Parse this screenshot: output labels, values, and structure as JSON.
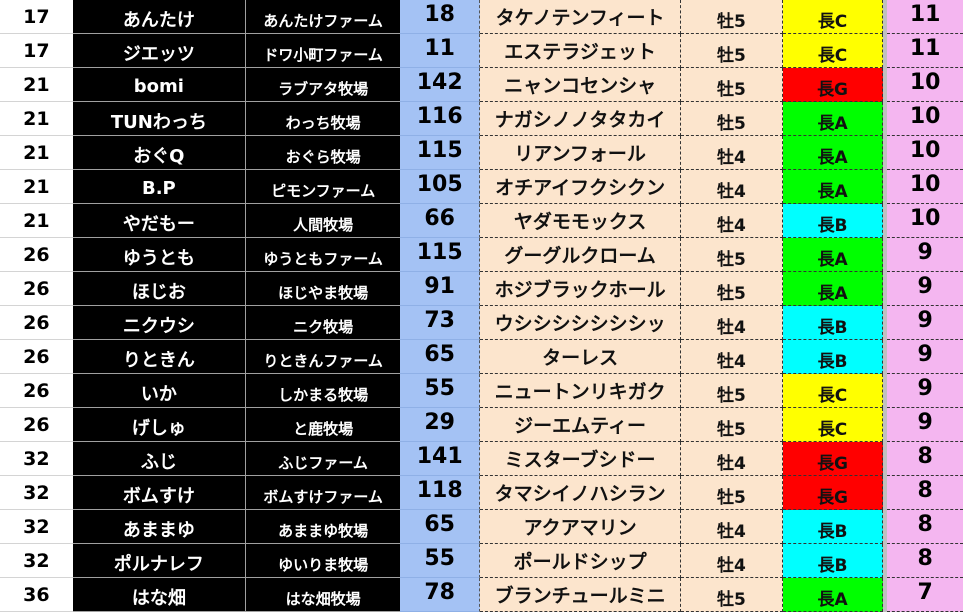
{
  "grade_colors": {
    "長A": "#00ff00",
    "長B": "#00ffff",
    "長C": "#ffff00",
    "長G": "#ff0000"
  },
  "rows": [
    {
      "rank": "17",
      "name": "あんたけ",
      "farm": "あんたけファーム",
      "num": "18",
      "horse": "タケノテンフィート",
      "sex": "牡5",
      "grade": "長C",
      "points": "11"
    },
    {
      "rank": "17",
      "name": "ジエッツ",
      "farm": "ドワ小町ファーム",
      "num": "11",
      "horse": "エステラジェット",
      "sex": "牡5",
      "grade": "長C",
      "points": "11"
    },
    {
      "rank": "21",
      "name": "bomi",
      "farm": "ラブアタ牧場",
      "num": "142",
      "horse": "ニャンコセンシャ",
      "sex": "牡5",
      "grade": "長G",
      "points": "10"
    },
    {
      "rank": "21",
      "name": "TUNわっち",
      "farm": "わっち牧場",
      "num": "116",
      "horse": "ナガシノノタタカイ",
      "sex": "牡5",
      "grade": "長A",
      "points": "10"
    },
    {
      "rank": "21",
      "name": "おぐQ",
      "farm": "おぐら牧場",
      "num": "115",
      "horse": "リアンフォール",
      "sex": "牡4",
      "grade": "長A",
      "points": "10"
    },
    {
      "rank": "21",
      "name": "B.P",
      "farm": "ピモンファーム",
      "num": "105",
      "horse": "オチアイフクシクン",
      "sex": "牡4",
      "grade": "長A",
      "points": "10"
    },
    {
      "rank": "21",
      "name": "やだもー",
      "farm": "人間牧場",
      "num": "66",
      "horse": "ヤダモモックス",
      "sex": "牡4",
      "grade": "長B",
      "points": "10"
    },
    {
      "rank": "26",
      "name": "ゆうとも",
      "farm": "ゆうともファーム",
      "num": "115",
      "horse": "グーグルクローム",
      "sex": "牡5",
      "grade": "長A",
      "points": "9"
    },
    {
      "rank": "26",
      "name": "ほじお",
      "farm": "ほじやま牧場",
      "num": "91",
      "horse": "ホジブラックホール",
      "sex": "牡5",
      "grade": "長A",
      "points": "9"
    },
    {
      "rank": "26",
      "name": "ニクウシ",
      "farm": "ニク牧場",
      "num": "73",
      "horse": "ウシシシシシシシッ",
      "sex": "牡4",
      "grade": "長B",
      "points": "9"
    },
    {
      "rank": "26",
      "name": "りときん",
      "farm": "りときんファーム",
      "num": "65",
      "horse": "ターレス",
      "sex": "牡4",
      "grade": "長B",
      "points": "9"
    },
    {
      "rank": "26",
      "name": "いか",
      "farm": "しかまる牧場",
      "num": "55",
      "horse": "ニュートンリキガク",
      "sex": "牡5",
      "grade": "長C",
      "points": "9"
    },
    {
      "rank": "26",
      "name": "げしゅ",
      "farm": "と鹿牧場",
      "num": "29",
      "horse": "ジーエムティー",
      "sex": "牡5",
      "grade": "長C",
      "points": "9"
    },
    {
      "rank": "32",
      "name": "ふじ",
      "farm": "ふじファーム",
      "num": "141",
      "horse": "ミスターブシドー",
      "sex": "牡4",
      "grade": "長G",
      "points": "8"
    },
    {
      "rank": "32",
      "name": "ボムすけ",
      "farm": "ボムすけファーム",
      "num": "118",
      "horse": "タマシイノハシラン",
      "sex": "牡5",
      "grade": "長G",
      "points": "8"
    },
    {
      "rank": "32",
      "name": "あままゆ",
      "farm": "あままゆ牧場",
      "num": "65",
      "horse": "アクアマリン",
      "sex": "牡4",
      "grade": "長B",
      "points": "8"
    },
    {
      "rank": "32",
      "name": "ポルナレフ",
      "farm": "ゆいりま牧場",
      "num": "55",
      "horse": "ポールドシップ",
      "sex": "牡4",
      "grade": "長B",
      "points": "8"
    },
    {
      "rank": "36",
      "name": "はな畑",
      "farm": "はな畑牧場",
      "num": "78",
      "horse": "ブランチュールミニ",
      "sex": "牡5",
      "grade": "長A",
      "points": "7"
    }
  ]
}
